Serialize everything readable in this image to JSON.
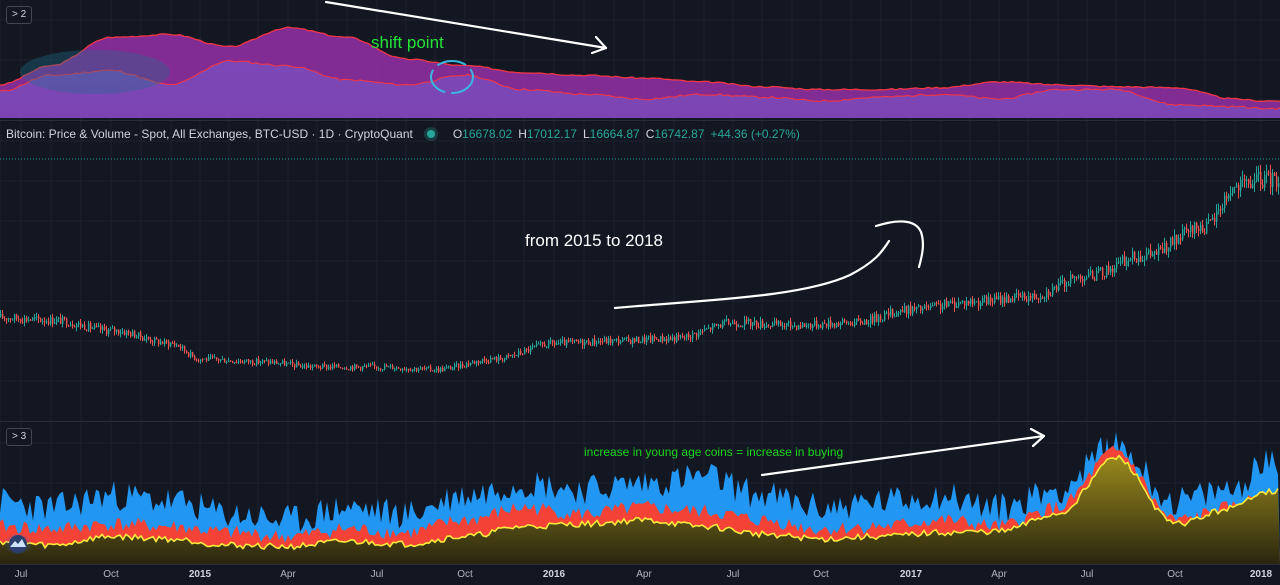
{
  "top_pane": {
    "collapse_label": "> 2",
    "annotation": "shift point",
    "colors": {
      "fill_purple": "#8e2fa0",
      "fill_violet": "#7b49b8",
      "line_red": "#f23645",
      "circle": "#3ab7e0"
    }
  },
  "price_pane": {
    "legend": {
      "title": "Bitcoin: Price & Volume - Spot, All Exchanges, BTC-USD · 1D · CryptoQuant",
      "o_label": "O",
      "o_value": "16678.02",
      "h_label": "H",
      "h_value": "17012.17",
      "l_label": "L",
      "l_value": "16664.87",
      "c_label": "C",
      "c_value": "16742.87",
      "change": "+44.36 (+0.27%)"
    },
    "annotation": "from 2015 to 2018",
    "colors": {
      "up": "#26a69a",
      "down": "#ef5350",
      "last_price_line": "#26a69a"
    }
  },
  "bottom_pane": {
    "collapse_label": "> 3",
    "annotation": "increase in young age coins = increase in buying",
    "colors": {
      "blue": "#2196f3",
      "red": "#f44336",
      "yellow": "#ffeb3b"
    }
  },
  "time_axis": {
    "ticks": [
      {
        "label": "Jul",
        "year": false
      },
      {
        "label": "Oct",
        "year": false
      },
      {
        "label": "2015",
        "year": true
      },
      {
        "label": "Apr",
        "year": false
      },
      {
        "label": "Jul",
        "year": false
      },
      {
        "label": "Oct",
        "year": false
      },
      {
        "label": "2016",
        "year": true
      },
      {
        "label": "Apr",
        "year": false
      },
      {
        "label": "Jul",
        "year": false
      },
      {
        "label": "Oct",
        "year": false
      },
      {
        "label": "2017",
        "year": true
      },
      {
        "label": "Apr",
        "year": false
      },
      {
        "label": "Jul",
        "year": false
      },
      {
        "label": "Oct",
        "year": false
      },
      {
        "label": "2018",
        "year": true
      }
    ]
  },
  "chart_data": [
    {
      "type": "area",
      "pane": "indicator-2",
      "x": [
        "2014-06",
        "2014-08",
        "2014-10",
        "2014-12",
        "2015-02",
        "2015-04",
        "2015-06",
        "2015-08",
        "2015-10",
        "2015-12",
        "2016-02",
        "2016-04",
        "2016-06",
        "2016-08",
        "2016-10",
        "2016-12",
        "2017-02",
        "2017-04",
        "2017-06",
        "2017-08",
        "2017-10",
        "2017-12",
        "2018-01"
      ],
      "series": [
        {
          "values": [
            0.35,
            0.55,
            0.85,
            0.88,
            0.75,
            0.95,
            0.85,
            0.62,
            0.55,
            0.48,
            0.45,
            0.42,
            0.38,
            0.33,
            0.3,
            0.3,
            0.32,
            0.38,
            0.35,
            0.33,
            0.32,
            0.2,
            0.18
          ]
        },
        {
          "values": [
            0.28,
            0.45,
            0.5,
            0.35,
            0.6,
            0.55,
            0.4,
            0.35,
            0.45,
            0.3,
            0.25,
            0.2,
            0.25,
            0.22,
            0.18,
            0.22,
            0.25,
            0.2,
            0.3,
            0.3,
            0.14,
            0.12,
            0.1
          ]
        }
      ]
    },
    {
      "type": "candlestick",
      "pane": "price",
      "x": [
        "2014-06",
        "2014-08",
        "2014-10",
        "2014-12",
        "2015-01",
        "2015-03",
        "2015-05",
        "2015-07",
        "2015-09",
        "2015-11",
        "2016-01",
        "2016-03",
        "2016-05",
        "2016-07",
        "2016-09",
        "2016-11",
        "2017-01",
        "2017-03",
        "2017-05",
        "2017-07",
        "2017-09",
        "2017-11",
        "2017-12",
        "2018-01"
      ],
      "close_relative": [
        0.36,
        0.35,
        0.31,
        0.26,
        0.2,
        0.19,
        0.17,
        0.17,
        0.16,
        0.2,
        0.26,
        0.27,
        0.28,
        0.34,
        0.33,
        0.34,
        0.39,
        0.42,
        0.44,
        0.52,
        0.6,
        0.71,
        0.86,
        0.89
      ],
      "last": {
        "open": 16678.02,
        "high": 17012.17,
        "low": 16664.87,
        "close": 16742.87,
        "change": 44.36,
        "change_pct": 0.27
      }
    },
    {
      "type": "area",
      "pane": "indicator-3",
      "x": [
        "2014-06",
        "2014-08",
        "2014-10",
        "2014-12",
        "2015-02",
        "2015-04",
        "2015-06",
        "2015-08",
        "2015-10",
        "2015-12",
        "2016-02",
        "2016-04",
        "2016-06",
        "2016-08",
        "2016-10",
        "2016-12",
        "2017-02",
        "2017-04",
        "2017-06",
        "2017-08",
        "2017-10",
        "2017-12",
        "2018-01"
      ],
      "series": [
        {
          "values": [
            0.5,
            0.45,
            0.55,
            0.5,
            0.4,
            0.35,
            0.45,
            0.4,
            0.55,
            0.65,
            0.6,
            0.65,
            0.7,
            0.55,
            0.45,
            0.5,
            0.55,
            0.45,
            0.6,
            0.95,
            0.5,
            0.6,
            0.8
          ]
        },
        {
          "values": [
            0.3,
            0.28,
            0.32,
            0.3,
            0.25,
            0.22,
            0.28,
            0.25,
            0.35,
            0.45,
            0.4,
            0.45,
            0.42,
            0.35,
            0.28,
            0.3,
            0.35,
            0.3,
            0.45,
            0.9,
            0.35,
            0.45,
            0.55
          ]
        },
        {
          "values": [
            0.18,
            0.15,
            0.22,
            0.2,
            0.15,
            0.14,
            0.18,
            0.16,
            0.22,
            0.3,
            0.32,
            0.35,
            0.3,
            0.24,
            0.2,
            0.22,
            0.25,
            0.26,
            0.4,
            0.85,
            0.32,
            0.45,
            0.58
          ]
        }
      ]
    }
  ]
}
